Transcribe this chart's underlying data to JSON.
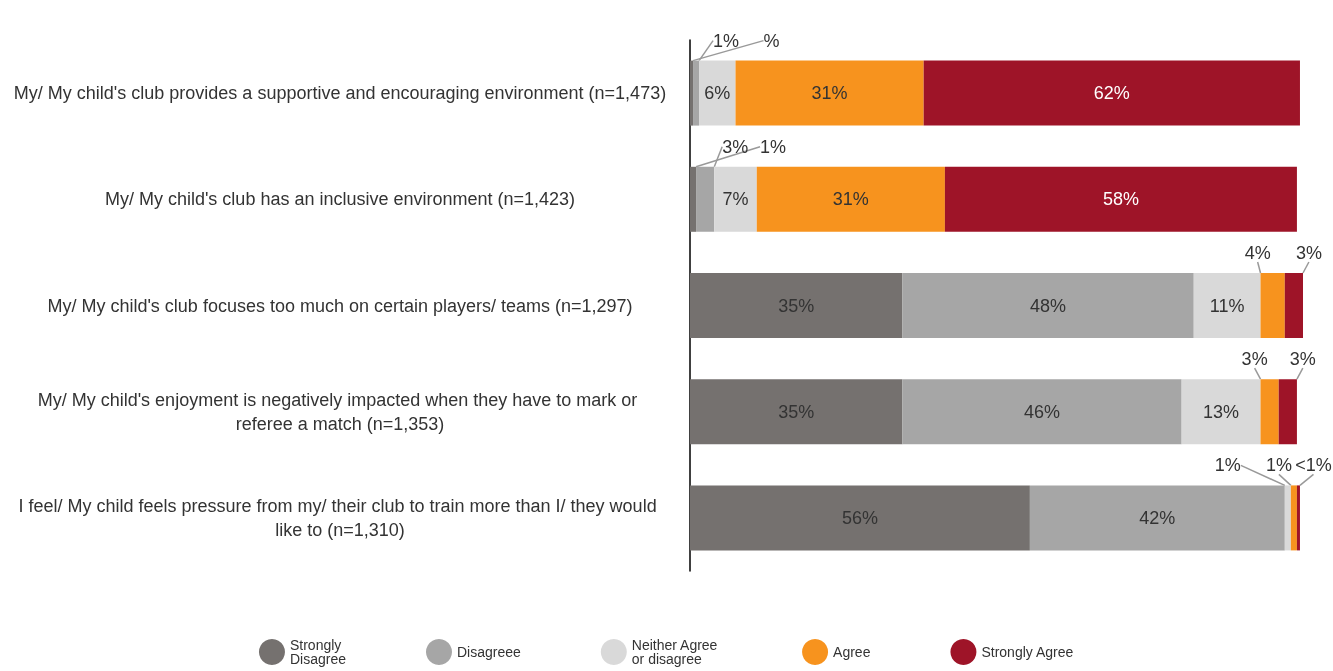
{
  "chart_data": {
    "type": "bar",
    "orientation": "horizontal",
    "stacked": true,
    "categories": [
      "My/ My child's club provides a supportive and encouraging environment (n=1,473)",
      "My/ My child's club has an inclusive environment (n=1,423)",
      "My/ My child's club focuses too much on certain players/ teams (n=1,297)",
      "My/ My child's enjoyment is negatively impacted when they have to mark or referee a match (n=1,353)",
      "I feel/ My child feels pressure from my/ their club to train more than I/ they would like to (n=1,310)"
    ],
    "series": [
      {
        "name": "Strongly Disagree",
        "color": "#75716f",
        "values": [
          0.5,
          1,
          35,
          35,
          56
        ],
        "value_labels": [
          "%",
          "1%",
          "35%",
          "35%",
          "56%"
        ]
      },
      {
        "name": "Disagreee",
        "color": "#a6a6a6",
        "values": [
          1,
          3,
          48,
          46,
          42
        ],
        "value_labels": [
          "1%",
          "3%",
          "48%",
          "46%",
          "42%"
        ]
      },
      {
        "name": "Neither Agree or disagree",
        "color": "#d9d9d9",
        "values": [
          6,
          7,
          11,
          13,
          1
        ],
        "value_labels": [
          "6%",
          "7%",
          "11%",
          "13%",
          "1%"
        ]
      },
      {
        "name": "Agree",
        "color": "#f7931e",
        "values": [
          31,
          31,
          4,
          3,
          1
        ],
        "value_labels": [
          "31%",
          "31%",
          "4%",
          "3%",
          "1%"
        ]
      },
      {
        "name": "Strongly Agree",
        "color": "#9e1428",
        "values": [
          62,
          58,
          3,
          3,
          0.5
        ],
        "value_labels": [
          "62%",
          "58%",
          "3%",
          "3%",
          "<1%"
        ]
      }
    ],
    "xlim": [
      0,
      101
    ],
    "tick_labels": "y",
    "grid": false,
    "legend": "bottom"
  }
}
